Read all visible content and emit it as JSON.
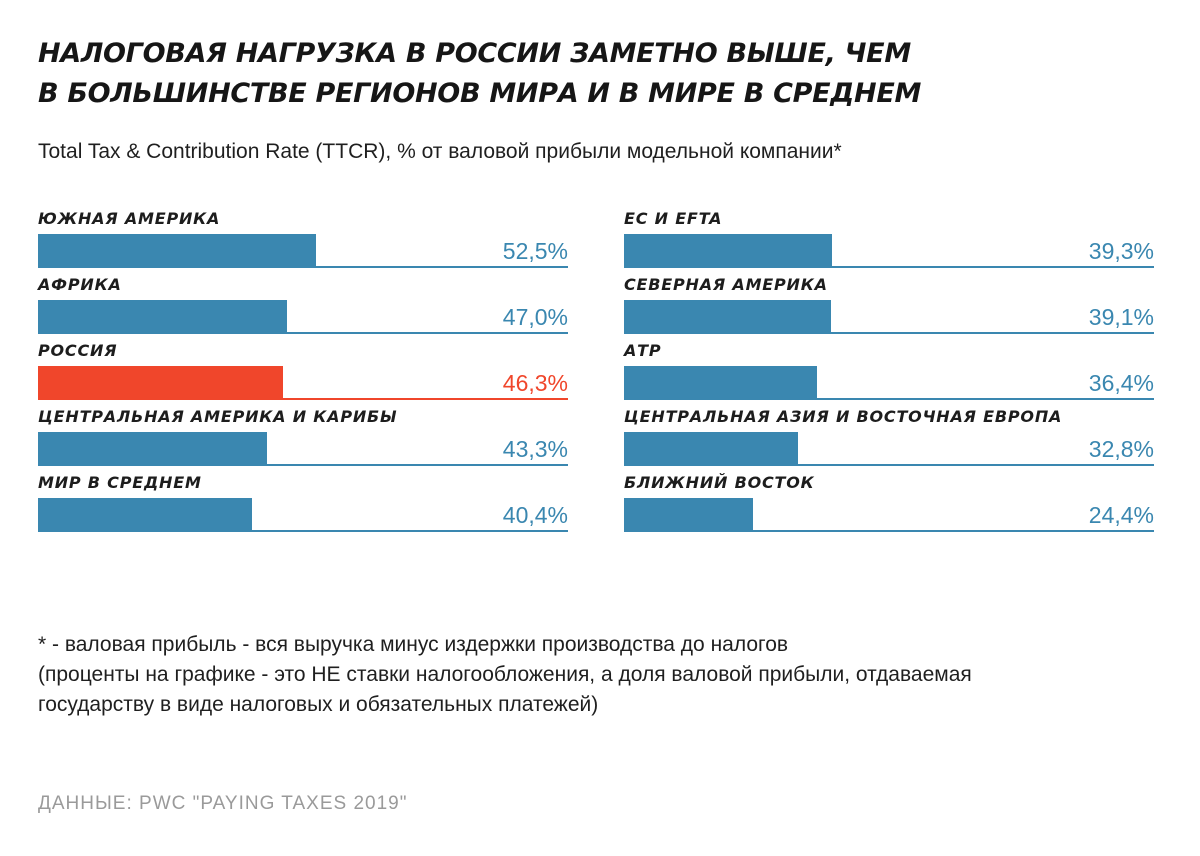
{
  "title_line1": "НАЛОГОВАЯ НАГРУЗКА В РОССИИ ЗАМЕТНО ВЫШЕ, ЧЕМ",
  "title_line2": "В БОЛЬШИНСТВЕ РЕГИОНОВ МИРА И В МИРЕ В СРЕДНЕМ",
  "subtitle": "Total Tax & Contribution Rate (TTCR), % от валовой прибыли модельной компании*",
  "colors": {
    "bar": "#3a87b0",
    "highlight": "#f0462b"
  },
  "chart_data": {
    "type": "bar",
    "orientation": "horizontal",
    "title": "НАЛОГОВАЯ НАГРУЗКА В РОССИИ ЗАМЕТНО ВЫШЕ, ЧЕМ В БОЛЬШИНСТВЕ РЕГИОНОВ МИРА И В МИРЕ В СРЕДНЕМ",
    "xlabel": "",
    "ylabel": "Total Tax & Contribution Rate (TTCR), % от валовой прибыли модельной компании*",
    "xlim": [
      0,
      100
    ],
    "grid": false,
    "highlight": "РОССИЯ",
    "categories": [
      "ЮЖНАЯ АМЕРИКА",
      "АФРИКА",
      "РОССИЯ",
      "ЦЕНТРАЛЬНАЯ АМЕРИКА И КАРИБЫ",
      "МИР В СРЕДНЕМ",
      "ЕС И EFTA",
      "СЕВЕРНАЯ АМЕРИКА",
      "АТР",
      "ЦЕНТРАЛЬНАЯ АЗИЯ И ВОСТОЧНАЯ ЕВРОПА",
      "БЛИЖНИЙ ВОСТОК"
    ],
    "values": [
      52.5,
      47.0,
      46.3,
      43.3,
      40.4,
      39.3,
      39.1,
      36.4,
      32.8,
      24.4
    ],
    "value_labels": [
      "52,5%",
      "47,0%",
      "46,3%",
      "43,3%",
      "40,4%",
      "39,3%",
      "39,1%",
      "36,4%",
      "32,8%",
      "24,4%"
    ]
  },
  "footnote": {
    "line1": "* - валовая прибыль - вся выручка минус издержки производства до налогов",
    "line2": "(проценты на графике - это НЕ ставки налогообложения, а доля валовой прибыли, отдаваемая",
    "line3": "государству в виде налоговых и обязательных платежей)"
  },
  "source": "ДАННЫЕ: PWC \"PAYING TAXES 2019\""
}
